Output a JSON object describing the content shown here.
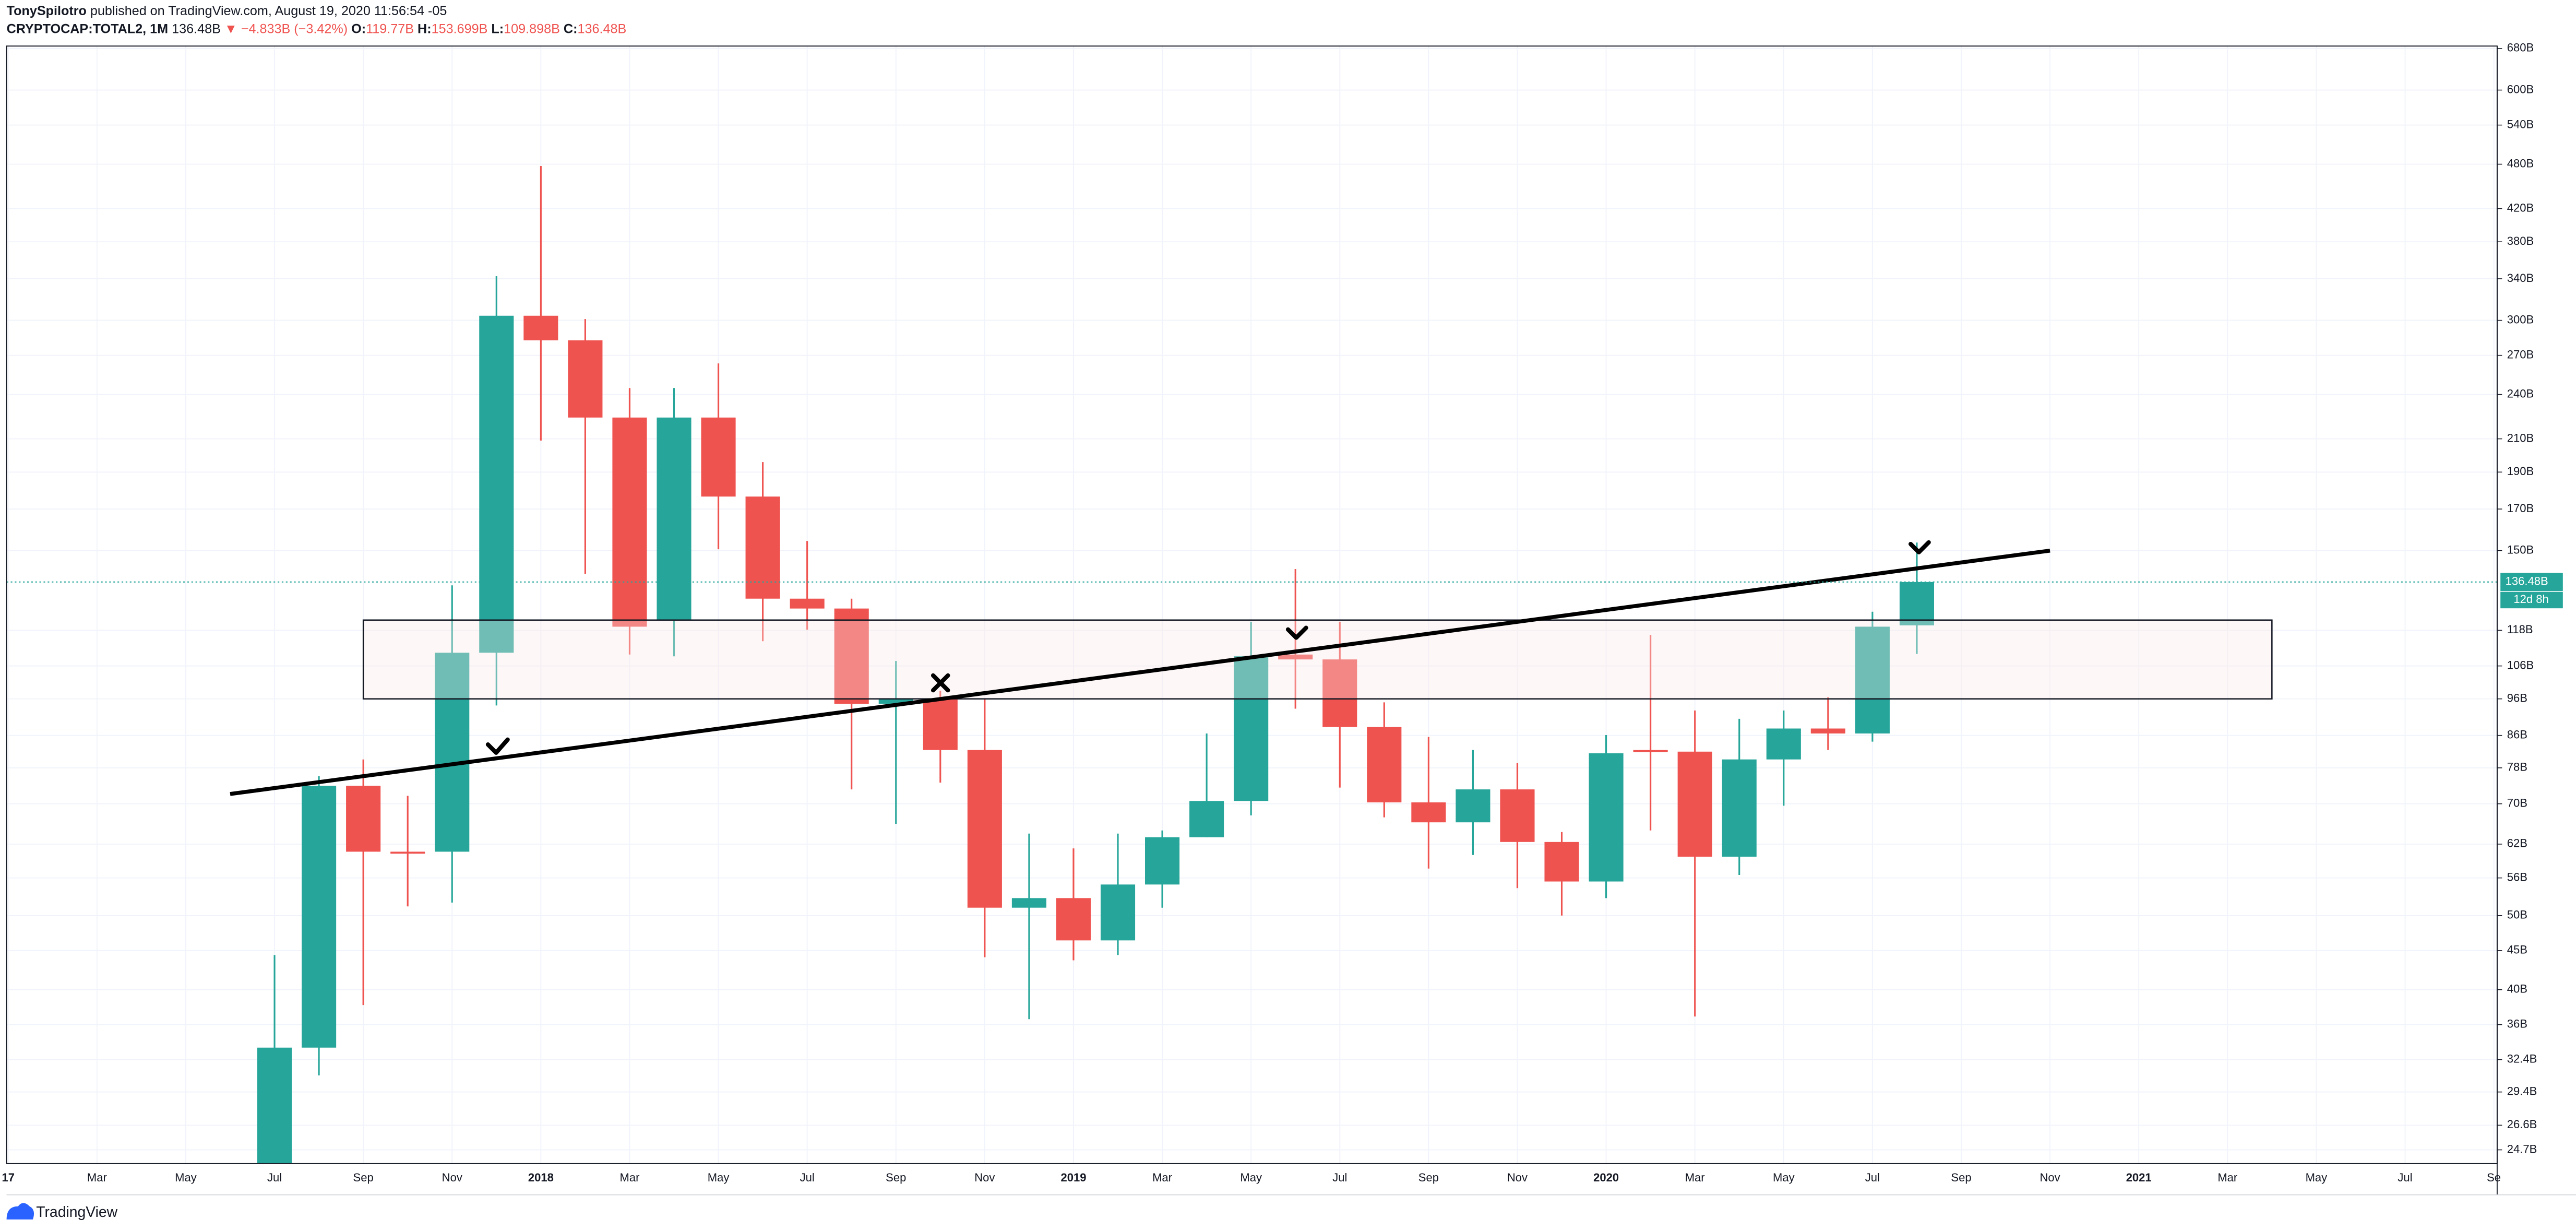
{
  "header": {
    "author": "TonySpilotro",
    "published": "published on TradingView.com, August 19, 2020 11:56:54 -05",
    "symbol": "CRYPTOCAP:TOTAL2, 1M",
    "last": "136.48B",
    "change": "▼ −4.833B (−3.42%)",
    "ohlc": [
      {
        "label": "O:",
        "value": "119.77B"
      },
      {
        "label": "H:",
        "value": "153.699B"
      },
      {
        "label": "L:",
        "value": "109.898B"
      },
      {
        "label": "C:",
        "value": "136.48B"
      }
    ]
  },
  "chart_data": {
    "type": "candlestick",
    "log_scale": true,
    "grid": true,
    "up_color": "#26a69a",
    "down_color": "#ef5350",
    "x": [
      "2017-07",
      "2017-08",
      "2017-09",
      "2017-10",
      "2017-11",
      "2017-12",
      "2018-01",
      "2018-02",
      "2018-03",
      "2018-04",
      "2018-05",
      "2018-06",
      "2018-07",
      "2018-08",
      "2018-09",
      "2018-10",
      "2018-11",
      "2018-12",
      "2019-01",
      "2019-02",
      "2019-03",
      "2019-04",
      "2019-05",
      "2019-06",
      "2019-07",
      "2019-08",
      "2019-09",
      "2019-10",
      "2019-11",
      "2019-12",
      "2020-01",
      "2020-02",
      "2020-03",
      "2020-04",
      "2020-05",
      "2020-06",
      "2020-07",
      "2020-08"
    ],
    "open": [
      21,
      33.6,
      73.9,
      60.6,
      60.6,
      110.3,
      304.2,
      282.5,
      223.9,
      121.7,
      223.9,
      176.5,
      129.8,
      126.0,
      94.6,
      96.0,
      82.3,
      51.2,
      52.7,
      46.4,
      54.9,
      63.3,
      70.6,
      109.7,
      108.1,
      88.2,
      70.3,
      66.2,
      73.1,
      62.4,
      55.4,
      82.3,
      81.9,
      59.7,
      80.0,
      87.8,
      86.5,
      119.77
    ],
    "high": [
      44.4,
      76.1,
      80.0,
      71.7,
      135.1,
      342.7,
      477.4,
      301.2,
      244.7,
      244.7,
      263.5,
      195.8,
      154.4,
      129.8,
      107.6,
      98.4,
      96.0,
      64.0,
      61.2,
      64.0,
      64.6,
      86.5,
      121.1,
      141.9,
      121.1,
      95.0,
      85.6,
      82.3,
      79.1,
      64.3,
      86.1,
      116.4,
      92.7,
      90.4,
      92.7,
      96.5,
      124.8,
      153.699
    ],
    "low": [
      18,
      30.9,
      38.2,
      51.4,
      52.0,
      94.1,
      208.9,
      139.9,
      109.7,
      109.1,
      150.6,
      114.2,
      118.2,
      73.1,
      65.9,
      74.6,
      44.1,
      36.6,
      43.7,
      44.4,
      51.2,
      63.3,
      67.6,
      93.2,
      73.5,
      67.2,
      57.6,
      60.0,
      54.3,
      50.0,
      52.7,
      64.6,
      36.9,
      56.5,
      69.6,
      82.3,
      84.4,
      109.898
    ],
    "close": [
      33.6,
      73.9,
      60.6,
      60.3,
      110.3,
      304.2,
      282.5,
      223.9,
      119.3,
      223.9,
      176.5,
      129.8,
      126.0,
      94.6,
      96.0,
      82.3,
      51.2,
      52.7,
      46.4,
      54.9,
      63.3,
      70.6,
      109.2,
      108.1,
      88.2,
      70.3,
      66.2,
      73.1,
      62.4,
      55.4,
      81.5,
      81.9,
      59.7,
      80.0,
      87.8,
      86.5,
      119.3,
      136.48
    ],
    "xlim": [
      "2017-01",
      "2021-09"
    ],
    "xticks": [
      {
        "value": "2017-01",
        "label": "17"
      },
      {
        "value": "2017-03",
        "label": "Mar"
      },
      {
        "value": "2017-05",
        "label": "May"
      },
      {
        "value": "2017-07",
        "label": "Jul"
      },
      {
        "value": "2017-09",
        "label": "Sep"
      },
      {
        "value": "2017-11",
        "label": "Nov"
      },
      {
        "value": "2018-01",
        "label": "2018"
      },
      {
        "value": "2018-03",
        "label": "Mar"
      },
      {
        "value": "2018-05",
        "label": "May"
      },
      {
        "value": "2018-07",
        "label": "Jul"
      },
      {
        "value": "2018-09",
        "label": "Sep"
      },
      {
        "value": "2018-11",
        "label": "Nov"
      },
      {
        "value": "2019-01",
        "label": "2019"
      },
      {
        "value": "2019-03",
        "label": "Mar"
      },
      {
        "value": "2019-05",
        "label": "May"
      },
      {
        "value": "2019-07",
        "label": "Jul"
      },
      {
        "value": "2019-09",
        "label": "Sep"
      },
      {
        "value": "2019-11",
        "label": "Nov"
      },
      {
        "value": "2020-01",
        "label": "2020"
      },
      {
        "value": "2020-03",
        "label": "Mar"
      },
      {
        "value": "2020-05",
        "label": "May"
      },
      {
        "value": "2020-07",
        "label": "Jul"
      },
      {
        "value": "2020-09",
        "label": "Sep"
      },
      {
        "value": "2020-11",
        "label": "Nov"
      },
      {
        "value": "2021-01",
        "label": "2021"
      },
      {
        "value": "2021-03",
        "label": "Mar"
      },
      {
        "value": "2021-05",
        "label": "May"
      },
      {
        "value": "2021-07",
        "label": "Jul"
      },
      {
        "value": "2021-09",
        "label": "Se"
      }
    ],
    "ylim": [
      23.7,
      685
    ],
    "yticks": [
      {
        "value": 680,
        "label": "680B"
      },
      {
        "value": 600,
        "label": "600B"
      },
      {
        "value": 540,
        "label": "540B"
      },
      {
        "value": 480,
        "label": "480B"
      },
      {
        "value": 420,
        "label": "420B"
      },
      {
        "value": 380,
        "label": "380B"
      },
      {
        "value": 340,
        "label": "340B"
      },
      {
        "value": 300,
        "label": "300B"
      },
      {
        "value": 270,
        "label": "270B"
      },
      {
        "value": 240,
        "label": "240B"
      },
      {
        "value": 210,
        "label": "210B"
      },
      {
        "value": 190,
        "label": "190B"
      },
      {
        "value": 170,
        "label": "170B"
      },
      {
        "value": 150,
        "label": "150B"
      },
      {
        "value": 118,
        "label": "118B"
      },
      {
        "value": 106,
        "label": "106B"
      },
      {
        "value": 96,
        "label": "96B"
      },
      {
        "value": 86,
        "label": "86B"
      },
      {
        "value": 78,
        "label": "78B"
      },
      {
        "value": 70,
        "label": "70B"
      },
      {
        "value": 62,
        "label": "62B"
      },
      {
        "value": 56,
        "label": "56B"
      },
      {
        "value": 50,
        "label": "50B"
      },
      {
        "value": 45,
        "label": "45B"
      },
      {
        "value": 40,
        "label": "40B"
      },
      {
        "value": 36,
        "label": "36B"
      },
      {
        "value": 32.4,
        "label": "32.4B"
      },
      {
        "value": 29.4,
        "label": "29.4B"
      },
      {
        "value": 26.6,
        "label": "26.6B"
      },
      {
        "value": 24.7,
        "label": "24.7B"
      }
    ],
    "price_label": "136.48B",
    "countdown": "12d 8h",
    "trendline": {
      "x": [
        "2017-06",
        "2020-11"
      ],
      "y": [
        72.1,
        150
      ]
    },
    "zone": {
      "x": [
        "2017-09",
        "2021-04"
      ],
      "y": [
        96,
        121.7
      ]
    }
  },
  "footer": "TradingView"
}
